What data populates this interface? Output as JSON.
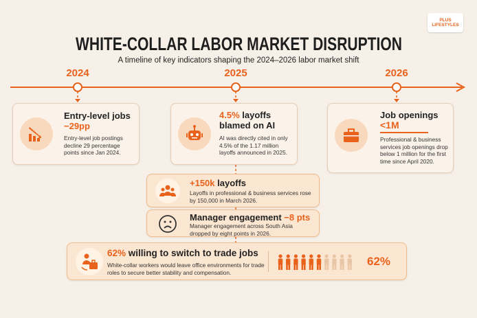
{
  "logo": {
    "line1": "PLUS",
    "line2": "LIFESTYLES"
  },
  "header": {
    "title": "WHITE-COLLAR LABOR MARKET DISRUPTION",
    "subtitle": "A timeline of key indicators shaping the 2024–2026 labor market shift"
  },
  "years": [
    "2024",
    "2025",
    "2026"
  ],
  "cards": [
    {
      "title": "Entry-level jobs",
      "highlight": "−29pp",
      "body": "Entry-level job postings decline 29 percentage points since Jan 2024."
    },
    {
      "highlight": "4.5%",
      "title": "layoffs blamed on AI",
      "body": "AI was directly cited in only 4.5% of the 1.17 million layoffs announced in 2025."
    },
    {
      "title": "Job openings",
      "highlight": "<1M",
      "body": "Professional & business services job openings drop below 1 million for the first time since April 2020."
    },
    {
      "highlight": "+150k",
      "title": "layoffs",
      "body": "Layoffs in professional & business services rose by 150,000 in March 2026."
    },
    {
      "title": "Manager engagement",
      "highlight": "−8 pts",
      "body": "Manager engagement across South Asia dropped by eight points in 2026."
    },
    {
      "highlight": "62%",
      "title": "willing to switch to trade jobs",
      "body": "White-collar workers would leave office environments for trade roles to secure better stability and compensation.",
      "stat": "62%"
    }
  ]
}
